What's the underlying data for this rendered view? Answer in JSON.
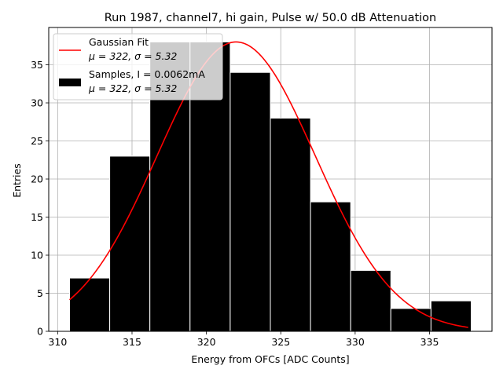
{
  "chart_data": {
    "type": "bar",
    "title": "Run 1987, channel7, hi gain, Pulse w/ 50.0 dB Attenuation",
    "xlabel": "Energy from OFCs [ADC Counts]",
    "ylabel": "Entries",
    "xlim": [
      309.4,
      339.2
    ],
    "ylim": [
      0,
      39.9
    ],
    "xticks": [
      310,
      315,
      320,
      325,
      330,
      335
    ],
    "yticks": [
      0,
      5,
      10,
      15,
      20,
      25,
      30,
      35
    ],
    "grid": true,
    "bin_edges": [
      310.8,
      313.5,
      316.2,
      318.9,
      321.6,
      324.3,
      327.0,
      329.7,
      332.4,
      335.1,
      337.8
    ],
    "values": [
      7,
      23,
      38,
      38,
      34,
      28,
      17,
      8,
      3,
      4
    ],
    "fit": {
      "mu": 322,
      "sigma": 5.32,
      "amplitude": 38,
      "x_start": 310.8,
      "x_end": 337.6
    },
    "bar_color": "#000000",
    "bar_edge_color": "#ffffff",
    "fit_color": "#ff0000",
    "legend": {
      "location": "upper left",
      "entries": [
        {
          "kind": "line",
          "label": "Gaussian Fit",
          "sublabel_stats": "μ = 322, σ = 5.32"
        },
        {
          "kind": "patch",
          "label": "Samples, I = 0.0062mA",
          "sublabel_stats": "μ = 322, σ = 5.32"
        }
      ]
    }
  }
}
